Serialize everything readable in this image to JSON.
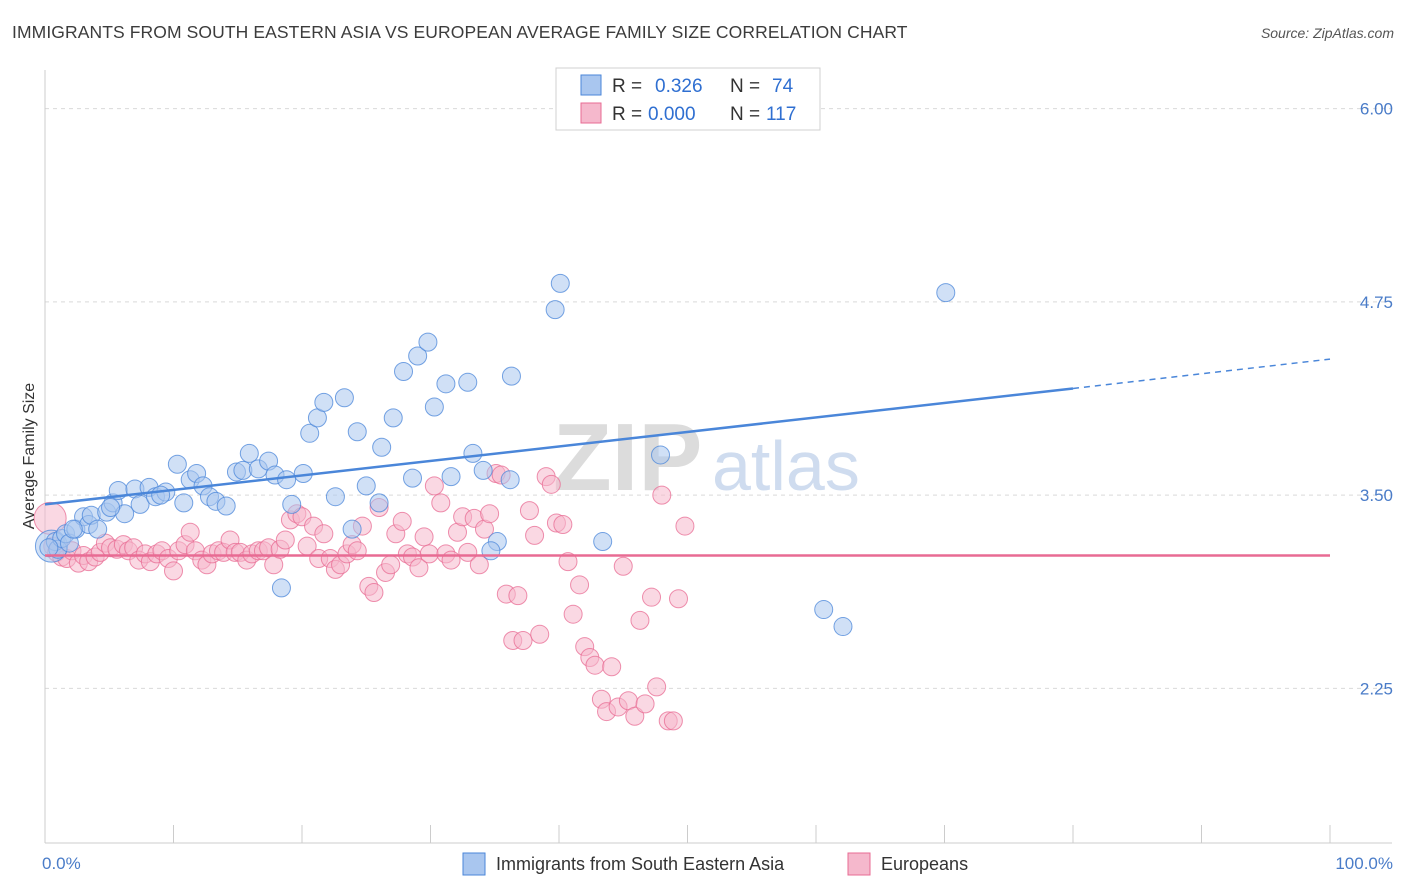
{
  "title": "IMMIGRANTS FROM SOUTH EASTERN ASIA VS EUROPEAN AVERAGE FAMILY SIZE CORRELATION CHART",
  "source": "Source: ZipAtlas.com",
  "watermark": {
    "zip": "ZIP",
    "atlas": "atlas"
  },
  "colors": {
    "blue": "#4a86d9",
    "blue_fill": "#a9c6ef",
    "pink": "#e86b93",
    "pink_fill": "#f5b8cc",
    "accent": "#4a7cc8"
  },
  "legend": {
    "rows": [
      {
        "r_label": "R =",
        "r_value": "0.326",
        "n_label": "N =",
        "n_value": "74"
      },
      {
        "r_label": "R =",
        "r_value": "0.000",
        "n_label": "N =",
        "n_value": "117"
      }
    ]
  },
  "chart_data": {
    "type": "scatter",
    "ylabel": "Average Family Size",
    "xlim": [
      0,
      100
    ],
    "ylim": [
      1.25,
      6.25
    ],
    "y_ticks": [
      2.25,
      3.5,
      4.75,
      6.0
    ],
    "y_tick_labels": [
      "2.25",
      "3.50",
      "4.75",
      "6.00"
    ],
    "x_tick_labels": [
      "0.0%",
      "100.0%"
    ],
    "grid": true,
    "legend_position": "top-center",
    "series": [
      {
        "name": "Immigrants from South Eastern Asia",
        "color": "#4a86d9",
        "trend": {
          "x0": 0,
          "y0": 3.44,
          "x1": 80,
          "y1": 4.19,
          "dashed_to_x": 100,
          "dashed_to_y": 4.38
        },
        "points": [
          [
            0.5,
            3.17
          ],
          [
            0.8,
            3.2
          ],
          [
            1.0,
            3.15
          ],
          [
            1.3,
            3.22
          ],
          [
            1.6,
            3.25
          ],
          [
            1.9,
            3.19
          ],
          [
            2.4,
            3.28
          ],
          [
            3.0,
            3.36
          ],
          [
            3.4,
            3.31
          ],
          [
            3.6,
            3.37
          ],
          [
            4.1,
            3.28
          ],
          [
            4.8,
            3.39
          ],
          [
            5.3,
            3.45
          ],
          [
            5.7,
            3.53
          ],
          [
            6.2,
            3.38
          ],
          [
            7.0,
            3.54
          ],
          [
            7.4,
            3.44
          ],
          [
            8.1,
            3.55
          ],
          [
            8.6,
            3.49
          ],
          [
            9.4,
            3.52
          ],
          [
            10.3,
            3.7
          ],
          [
            10.8,
            3.45
          ],
          [
            11.3,
            3.6
          ],
          [
            11.8,
            3.64
          ],
          [
            12.3,
            3.56
          ],
          [
            12.8,
            3.49
          ],
          [
            13.3,
            3.46
          ],
          [
            14.1,
            3.43
          ],
          [
            14.9,
            3.65
          ],
          [
            15.4,
            3.66
          ],
          [
            15.9,
            3.77
          ],
          [
            16.6,
            3.67
          ],
          [
            17.4,
            3.72
          ],
          [
            17.9,
            3.63
          ],
          [
            18.8,
            3.6
          ],
          [
            19.2,
            3.44
          ],
          [
            20.1,
            3.64
          ],
          [
            20.6,
            3.9
          ],
          [
            21.2,
            4.0
          ],
          [
            21.7,
            4.1
          ],
          [
            22.6,
            3.49
          ],
          [
            23.3,
            4.13
          ],
          [
            23.9,
            3.28
          ],
          [
            24.3,
            3.91
          ],
          [
            25.0,
            3.56
          ],
          [
            26.2,
            3.81
          ],
          [
            26.0,
            3.45
          ],
          [
            27.1,
            4.0
          ],
          [
            27.9,
            4.3
          ],
          [
            28.6,
            3.61
          ],
          [
            29.0,
            4.4
          ],
          [
            29.8,
            4.49
          ],
          [
            30.3,
            4.07
          ],
          [
            31.2,
            4.22
          ],
          [
            31.6,
            3.62
          ],
          [
            32.9,
            4.23
          ],
          [
            33.3,
            3.77
          ],
          [
            34.1,
            3.66
          ],
          [
            35.2,
            3.2
          ],
          [
            34.7,
            3.14
          ],
          [
            36.2,
            3.6
          ],
          [
            36.3,
            4.27
          ],
          [
            39.7,
            4.7
          ],
          [
            40.1,
            4.87
          ],
          [
            43.4,
            3.2
          ],
          [
            47.9,
            3.76
          ],
          [
            60.6,
            2.76
          ],
          [
            62.1,
            2.65
          ],
          [
            70.1,
            4.81
          ],
          [
            18.4,
            2.9
          ],
          [
            2.2,
            3.28
          ],
          [
            0.3,
            3.16
          ],
          [
            5.1,
            3.42
          ],
          [
            9.0,
            3.5
          ]
        ]
      },
      {
        "name": "Europeans",
        "color": "#e86b93",
        "trend": {
          "x0": 0,
          "y0": 3.11,
          "x1": 100,
          "y1": 3.11
        },
        "points": [
          [
            0.4,
            3.35
          ],
          [
            0.6,
            3.17
          ],
          [
            0.9,
            3.13
          ],
          [
            1.3,
            3.1
          ],
          [
            1.7,
            3.09
          ],
          [
            2.1,
            3.14
          ],
          [
            2.6,
            3.06
          ],
          [
            3.0,
            3.11
          ],
          [
            3.4,
            3.07
          ],
          [
            3.9,
            3.1
          ],
          [
            4.3,
            3.13
          ],
          [
            4.7,
            3.19
          ],
          [
            5.1,
            3.16
          ],
          [
            5.6,
            3.15
          ],
          [
            6.1,
            3.18
          ],
          [
            6.5,
            3.14
          ],
          [
            6.9,
            3.16
          ],
          [
            7.3,
            3.08
          ],
          [
            7.8,
            3.12
          ],
          [
            8.2,
            3.07
          ],
          [
            8.7,
            3.12
          ],
          [
            9.1,
            3.14
          ],
          [
            9.6,
            3.09
          ],
          [
            10.0,
            3.01
          ],
          [
            10.4,
            3.14
          ],
          [
            10.9,
            3.18
          ],
          [
            11.3,
            3.26
          ],
          [
            11.7,
            3.14
          ],
          [
            12.2,
            3.08
          ],
          [
            12.6,
            3.05
          ],
          [
            13.0,
            3.12
          ],
          [
            13.5,
            3.14
          ],
          [
            13.9,
            3.13
          ],
          [
            14.4,
            3.21
          ],
          [
            14.8,
            3.13
          ],
          [
            15.2,
            3.13
          ],
          [
            15.7,
            3.08
          ],
          [
            16.1,
            3.12
          ],
          [
            16.6,
            3.14
          ],
          [
            17.0,
            3.14
          ],
          [
            17.4,
            3.16
          ],
          [
            17.8,
            3.05
          ],
          [
            18.3,
            3.15
          ],
          [
            18.7,
            3.21
          ],
          [
            19.1,
            3.34
          ],
          [
            19.6,
            3.38
          ],
          [
            20.0,
            3.36
          ],
          [
            20.4,
            3.17
          ],
          [
            20.9,
            3.3
          ],
          [
            21.3,
            3.09
          ],
          [
            21.7,
            3.25
          ],
          [
            22.2,
            3.09
          ],
          [
            22.6,
            3.02
          ],
          [
            23.0,
            3.05
          ],
          [
            23.5,
            3.12
          ],
          [
            23.9,
            3.18
          ],
          [
            24.3,
            3.14
          ],
          [
            24.7,
            3.3
          ],
          [
            25.2,
            2.91
          ],
          [
            25.6,
            2.87
          ],
          [
            26.0,
            3.42
          ],
          [
            26.5,
            3.0
          ],
          [
            26.9,
            3.05
          ],
          [
            27.3,
            3.25
          ],
          [
            27.8,
            3.33
          ],
          [
            28.2,
            3.12
          ],
          [
            28.6,
            3.1
          ],
          [
            29.1,
            3.03
          ],
          [
            29.5,
            3.23
          ],
          [
            29.9,
            3.12
          ],
          [
            30.3,
            3.56
          ],
          [
            30.8,
            3.45
          ],
          [
            31.2,
            3.12
          ],
          [
            31.6,
            3.08
          ],
          [
            32.1,
            3.26
          ],
          [
            32.5,
            3.36
          ],
          [
            32.9,
            3.13
          ],
          [
            33.4,
            3.35
          ],
          [
            33.8,
            3.05
          ],
          [
            34.2,
            3.28
          ],
          [
            34.6,
            3.38
          ],
          [
            35.1,
            3.64
          ],
          [
            35.5,
            3.63
          ],
          [
            35.9,
            2.86
          ],
          [
            36.4,
            2.56
          ],
          [
            36.8,
            2.85
          ],
          [
            37.2,
            2.56
          ],
          [
            37.7,
            3.4
          ],
          [
            38.1,
            3.24
          ],
          [
            38.5,
            2.6
          ],
          [
            39.0,
            3.62
          ],
          [
            39.4,
            3.57
          ],
          [
            39.8,
            3.32
          ],
          [
            40.3,
            3.31
          ],
          [
            40.7,
            3.07
          ],
          [
            41.1,
            2.73
          ],
          [
            41.6,
            2.92
          ],
          [
            42.0,
            2.52
          ],
          [
            42.4,
            2.45
          ],
          [
            42.8,
            2.4
          ],
          [
            43.3,
            2.18
          ],
          [
            43.7,
            2.1
          ],
          [
            44.1,
            2.39
          ],
          [
            44.6,
            2.13
          ],
          [
            45.0,
            3.04
          ],
          [
            45.4,
            2.17
          ],
          [
            45.9,
            2.07
          ],
          [
            46.3,
            2.69
          ],
          [
            46.7,
            2.15
          ],
          [
            47.2,
            2.84
          ],
          [
            47.6,
            2.26
          ],
          [
            48.0,
            3.5
          ],
          [
            48.5,
            2.04
          ],
          [
            48.9,
            2.04
          ],
          [
            49.3,
            2.83
          ],
          [
            49.8,
            3.3
          ]
        ]
      }
    ]
  },
  "bottom_legend": [
    {
      "label": "Immigrants from South Eastern Asia"
    },
    {
      "label": "Europeans"
    }
  ]
}
